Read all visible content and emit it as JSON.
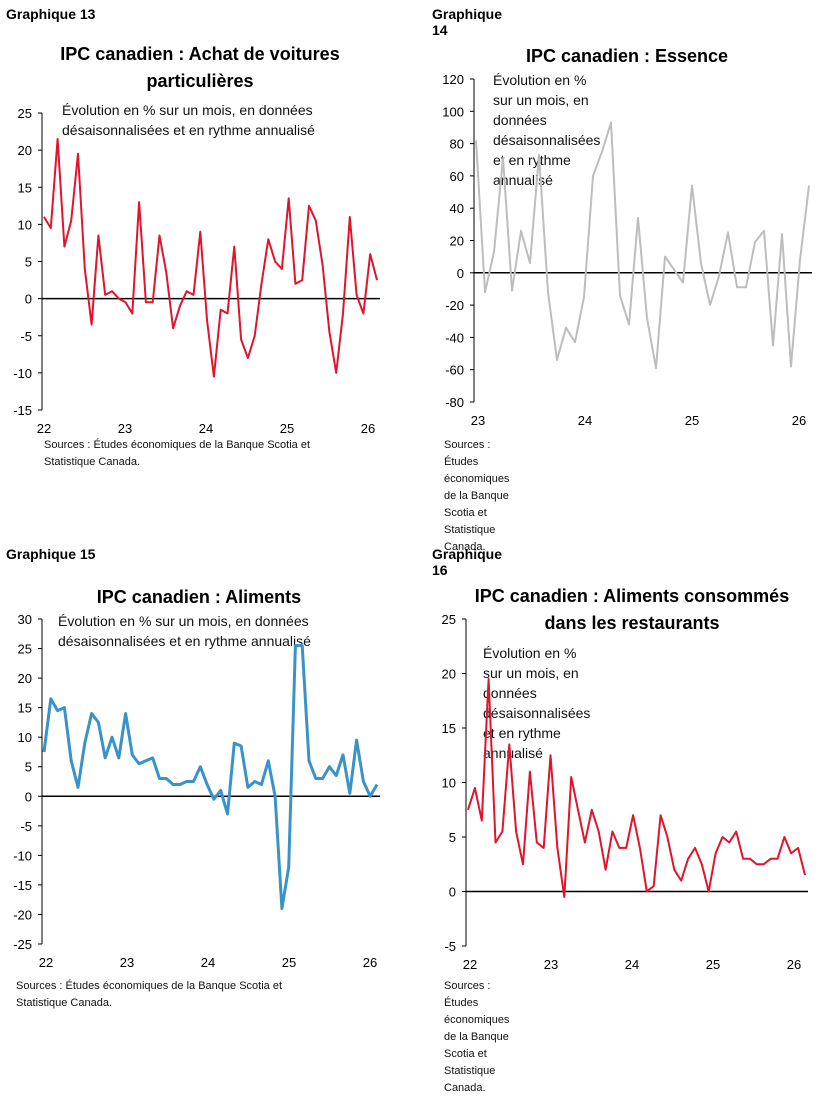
{
  "charts": [
    {
      "label": "Graphique 13",
      "title": [
        "IPC canadien : Achat de voitures",
        "particulières"
      ],
      "subtitle": [
        "Évolution en % sur un mois, en données",
        "désaisonnalisées et en rythme annualisé"
      ],
      "source": [
        "Sources : Études économiques de la Banque Scotia et",
        "Statistique Canada."
      ],
      "color": "#e0142c"
    },
    {
      "label": "Graphique 14",
      "title": [
        "IPC canadien : Essence"
      ],
      "subtitle": [
        "Évolution en % sur un mois, en données",
        "désaisonnalisées et en rythme annualisé"
      ],
      "source": [
        "Sources : Études économiques de la Banque Scotia et",
        "Statistique Canada."
      ],
      "color": "#bdbdbd"
    },
    {
      "label": "Graphique 15",
      "title": [
        "IPC canadien : Aliments"
      ],
      "subtitle": [
        "Évolution en % sur un mois, en données",
        "désaisonnalisées et en rythme annualisé"
      ],
      "source": [
        "Sources : Études économiques de la Banque Scotia et",
        "Statistique Canada."
      ],
      "color": "#3a93c8"
    },
    {
      "label": "Graphique 16",
      "title": [
        "IPC canadien : Aliments consommés",
        "dans les restaurants"
      ],
      "subtitle": [
        "Évolution en % sur un mois, en données",
        "désaisonnalisées et en rythme annualisé"
      ],
      "source": [
        "Sources : Études économiques de la Banque Scotia et",
        "Statistique Canada."
      ],
      "color": "#e0142c"
    }
  ],
  "chart_data": [
    {
      "type": "line",
      "title": "IPC canadien : Achat de voitures particulières",
      "ylim": [
        -15,
        25
      ],
      "yticks": [
        -15,
        -10,
        -5,
        0,
        5,
        10,
        15,
        20,
        25
      ],
      "xticks": [
        "22",
        "23",
        "24",
        "25",
        "26"
      ],
      "x_start": "2022-01",
      "series": [
        {
          "values": [
            11,
            9.5,
            21.5,
            7,
            10.5,
            19.5,
            4,
            -3.5,
            8.5,
            0.5,
            1,
            0,
            -0.5,
            -2,
            13,
            -0.5,
            -0.5,
            8.5,
            3.5,
            -4,
            -1,
            1,
            0.5,
            9,
            -3,
            -10.5,
            -1.5,
            -2,
            7,
            -5.5,
            -8,
            -5,
            2,
            8,
            5,
            4,
            13.5,
            2,
            2.5,
            12.5,
            10.5,
            4.5,
            -4.5,
            -10,
            -2,
            11,
            0.5,
            -2,
            6,
            2.5
          ]
        }
      ]
    },
    {
      "type": "line",
      "title": "IPC canadien : Essence",
      "ylim": [
        -80,
        120
      ],
      "yticks": [
        -80,
        -60,
        -40,
        -20,
        0,
        20,
        40,
        60,
        80,
        100,
        120
      ],
      "xticks": [
        "23",
        "24",
        "25",
        "26"
      ],
      "x_start": "2023-01",
      "series": [
        {
          "values": [
            82,
            -12,
            13,
            71,
            -11,
            26,
            6,
            73,
            -12,
            -54,
            -34,
            -43,
            -15,
            60,
            75,
            93,
            -14,
            -32,
            34,
            -28,
            -59,
            10,
            2,
            -6,
            54,
            6,
            -20,
            -2,
            25,
            -9,
            -9,
            19,
            26,
            -45,
            24,
            -58,
            8,
            54
          ]
        }
      ]
    },
    {
      "type": "line",
      "title": "IPC canadien : Aliments",
      "ylim": [
        -25,
        30
      ],
      "yticks": [
        -25,
        -20,
        -15,
        -10,
        -5,
        0,
        5,
        10,
        15,
        20,
        25,
        30
      ],
      "xticks": [
        "22",
        "23",
        "24",
        "25",
        "26"
      ],
      "x_start": "2022-01",
      "series": [
        {
          "values": [
            7.5,
            16.5,
            14.5,
            15,
            6,
            1.5,
            9,
            14,
            12.5,
            6.5,
            10,
            6.5,
            14,
            7,
            5.5,
            6,
            6.5,
            3,
            3,
            2,
            2,
            2.5,
            2.5,
            5,
            2,
            -0.5,
            1,
            -3,
            9,
            8.5,
            1.5,
            2.5,
            2,
            6,
            0,
            -19,
            -12,
            25.5,
            25.5,
            6,
            3,
            3,
            5,
            3.5,
            7,
            0.5,
            9.5,
            2.5,
            0,
            2
          ]
        }
      ]
    },
    {
      "type": "line",
      "title": "IPC canadien : Aliments consommés dans les restaurants",
      "ylim": [
        -5,
        25
      ],
      "yticks": [
        -5,
        0,
        5,
        10,
        15,
        20,
        25
      ],
      "xticks": [
        "22",
        "23",
        "24",
        "25",
        "26"
      ],
      "x_start": "2022-01",
      "series": [
        {
          "values": [
            7.5,
            9.5,
            6.5,
            19.5,
            4.5,
            5.5,
            13.5,
            5.5,
            2.5,
            11,
            4.5,
            4,
            12.5,
            4,
            -0.5,
            10.5,
            7.5,
            4.5,
            7.5,
            5.5,
            2,
            5.5,
            4,
            4,
            7,
            4,
            0,
            0.5,
            7,
            5,
            2,
            1,
            3,
            4,
            2.5,
            0,
            3.5,
            5,
            4.5,
            5.5,
            3,
            3,
            2.5,
            2.5,
            3,
            3,
            5,
            3.5,
            4,
            1.5
          ]
        }
      ]
    }
  ]
}
